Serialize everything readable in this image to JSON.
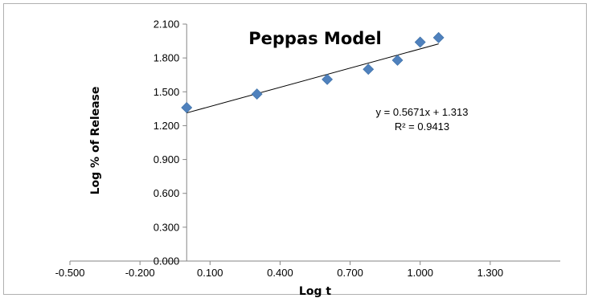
{
  "chart_data": {
    "type": "scatter",
    "title": "Peppas Model",
    "xlabel": "Log t",
    "ylabel": "Log % of Release",
    "xlim": [
      -0.5,
      1.6
    ],
    "ylim": [
      0.0,
      2.1
    ],
    "x_ticks": [
      "-0.500",
      "-0.200",
      "0.100",
      "0.400",
      "0.700",
      "1.000",
      "1.300"
    ],
    "y_ticks": [
      "0.000",
      "0.300",
      "0.600",
      "0.900",
      "1.200",
      "1.500",
      "1.800",
      "2.100"
    ],
    "grid": false,
    "legend": false,
    "series": [
      {
        "marker": "diamond",
        "color": "#4f81bd",
        "x": [
          0.0,
          0.301,
          0.602,
          0.778,
          0.903,
          1.0,
          1.079
        ],
        "y": [
          1.36,
          1.48,
          1.61,
          1.7,
          1.78,
          1.94,
          1.98
        ]
      }
    ],
    "trendline": {
      "slope": 0.5671,
      "intercept": 1.313,
      "x_range": [
        0.0,
        1.079
      ],
      "color": "#000000"
    },
    "annotations": {
      "equation": "y = 0.5671x + 1.313",
      "r_squared": "R² = 0.9413"
    }
  }
}
